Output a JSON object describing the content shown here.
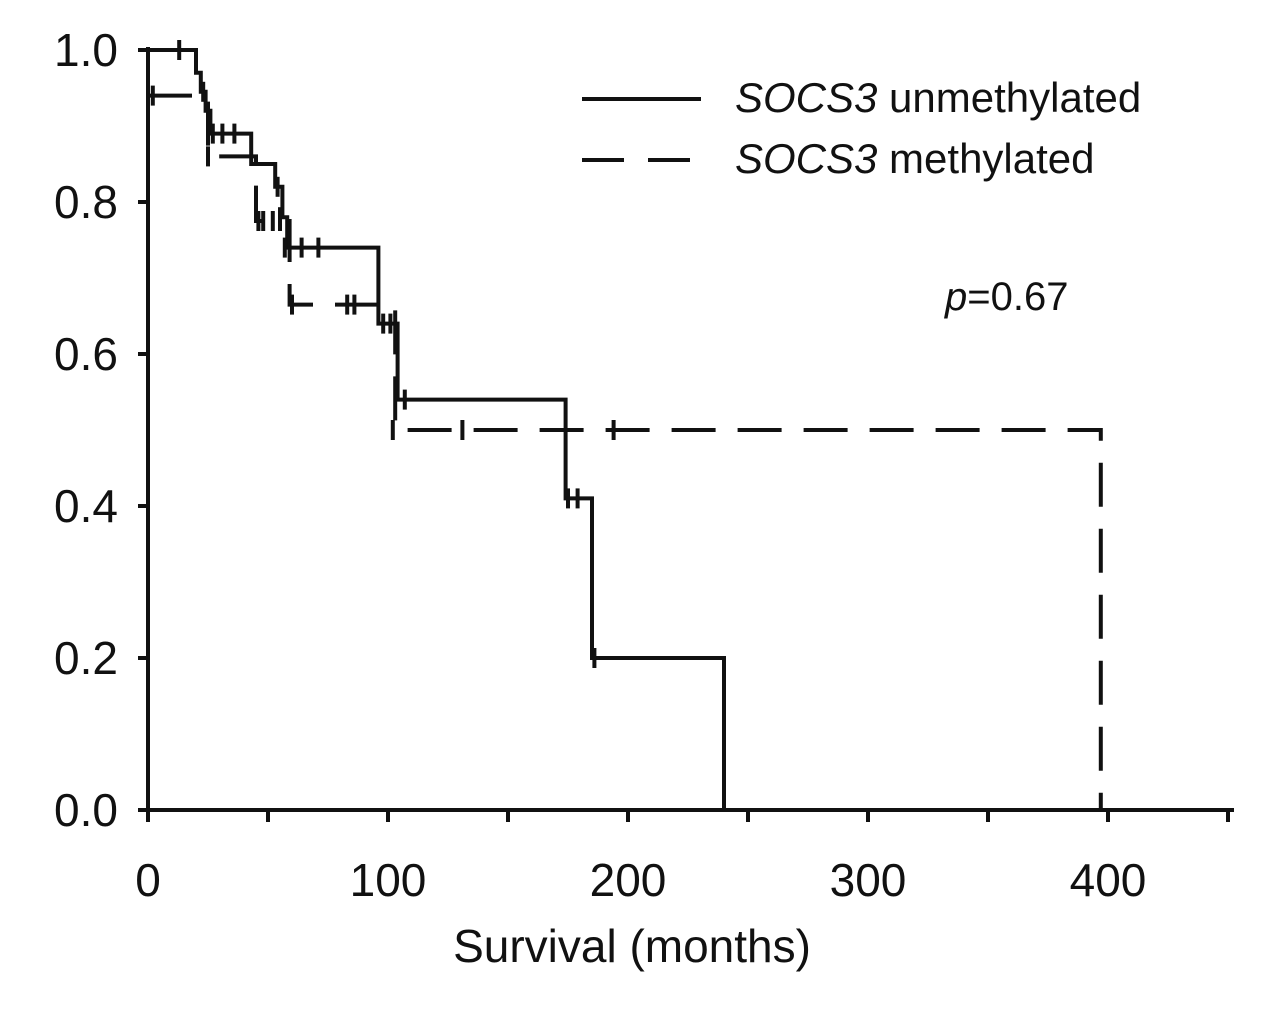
{
  "chart_data": {
    "type": "line",
    "subtype": "kaplan-meier",
    "title": "",
    "xlabel": "Survival (months)",
    "ylabel": "",
    "xlim": [
      0,
      450
    ],
    "ylim": [
      0,
      1.0
    ],
    "x_ticks": [
      0,
      100,
      200,
      300,
      400
    ],
    "y_ticks": [
      0.0,
      0.2,
      0.4,
      0.6,
      0.8,
      1.0
    ],
    "x_tick_labels": [
      "0",
      "100",
      "200",
      "300",
      "400"
    ],
    "y_tick_labels": [
      "0.0",
      "0.2",
      "0.4",
      "0.6",
      "0.8",
      "1.0"
    ],
    "annotation": {
      "p_italic": "p",
      "p_value": "=0.67"
    },
    "legend_position": "top-right",
    "series": [
      {
        "name": "SOCS3 unmethylated",
        "legend_gene": "SOCS3",
        "legend_rest": " unmethylated",
        "style": "solid",
        "steps": [
          [
            0,
            1.0
          ],
          [
            20,
            0.97
          ],
          [
            22,
            0.945
          ],
          [
            24,
            0.92
          ],
          [
            26,
            0.89
          ],
          [
            43,
            0.85
          ],
          [
            53,
            0.82
          ],
          [
            56,
            0.78
          ],
          [
            58,
            0.74
          ],
          [
            96,
            0.64
          ],
          [
            104,
            0.54
          ],
          [
            174,
            0.41
          ],
          [
            185,
            0.2
          ],
          [
            240,
            0.0
          ]
        ],
        "end_x": 240,
        "censored": [
          [
            13,
            1.0
          ],
          [
            23,
            0.945
          ],
          [
            27,
            0.89
          ],
          [
            31,
            0.89
          ],
          [
            36,
            0.89
          ],
          [
            54,
            0.82
          ],
          [
            55,
            0.78
          ],
          [
            57,
            0.74
          ],
          [
            64,
            0.74
          ],
          [
            71,
            0.74
          ],
          [
            101,
            0.64
          ],
          [
            107,
            0.54
          ],
          [
            175,
            0.41
          ],
          [
            179,
            0.41
          ],
          [
            186,
            0.2
          ]
        ]
      },
      {
        "name": "SOCS3 methylated",
        "legend_gene": "SOCS3",
        "legend_rest": " methylated",
        "style": "dashed",
        "steps": [
          [
            0,
            0.94
          ],
          [
            25,
            0.86
          ],
          [
            45,
            0.775
          ],
          [
            59,
            0.665
          ],
          [
            103,
            0.5
          ],
          [
            397,
            0.0
          ]
        ],
        "end_x": 397,
        "censored": [
          [
            2,
            0.94
          ],
          [
            25,
            0.86
          ],
          [
            46,
            0.775
          ],
          [
            48,
            0.775
          ],
          [
            52,
            0.775
          ],
          [
            55,
            0.775
          ],
          [
            60,
            0.665
          ],
          [
            83,
            0.665
          ],
          [
            86,
            0.665
          ],
          [
            98,
            0.64
          ],
          [
            102,
            0.5
          ],
          [
            131,
            0.5
          ],
          [
            194,
            0.5
          ]
        ]
      }
    ]
  }
}
